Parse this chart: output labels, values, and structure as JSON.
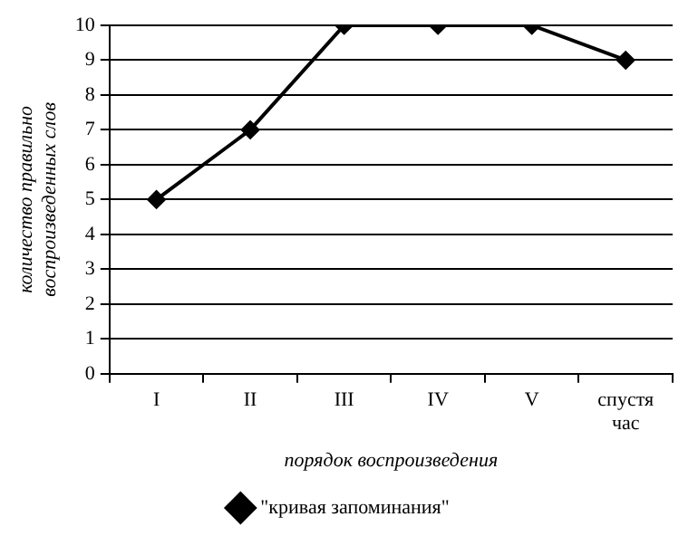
{
  "chart_data": {
    "type": "line",
    "xlabel": "порядок воспроизведения",
    "ylabel": "количество правильно воспроизведенных слов",
    "categories": [
      "I",
      "II",
      "III",
      "IV",
      "V",
      "спустя час"
    ],
    "series": [
      {
        "name": "\"кривая запоминания\"",
        "color": "#000000",
        "values": [
          5,
          7,
          10,
          10,
          10,
          9
        ]
      }
    ],
    "ylim": [
      0,
      10
    ],
    "yticks": [
      0,
      1,
      2,
      3,
      4,
      5,
      6,
      7,
      8,
      9,
      10
    ],
    "grid": "y",
    "legend": "bottom",
    "marker": "diamond",
    "line_style": "solid"
  }
}
